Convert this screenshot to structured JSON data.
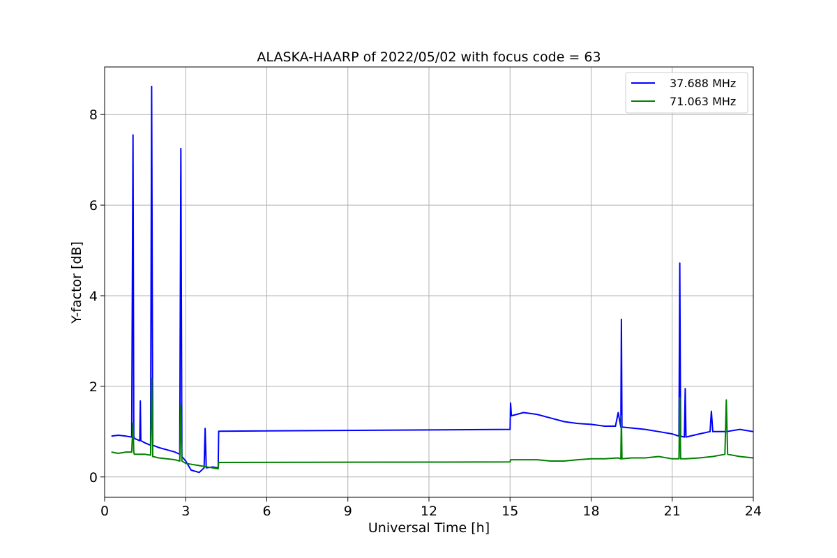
{
  "chart_data": {
    "type": "line",
    "title": "ALASKA-HAARP of 2022/05/02 with focus code = 63",
    "xlabel": "Universal Time [h]",
    "ylabel": "Y-factor [dB]",
    "xlim": [
      0,
      24
    ],
    "ylim": [
      -0.45,
      9.05
    ],
    "xticks": [
      0,
      3,
      6,
      9,
      12,
      15,
      18,
      21,
      24
    ],
    "xtick_labels": [
      "0",
      "3",
      "6",
      "9",
      "12",
      "15",
      "18",
      "21",
      "24"
    ],
    "yticks": [
      0,
      2,
      4,
      6,
      8
    ],
    "ytick_labels": [
      "0",
      "2",
      "4",
      "6",
      "8"
    ],
    "grid": true,
    "legend_position": "top-right",
    "series": [
      {
        "name": "37.688 MHz",
        "color": "#0000ff",
        "x": [
          0.25,
          0.5,
          0.8,
          1.0,
          1.05,
          1.08,
          1.1,
          1.3,
          1.32,
          1.34,
          1.5,
          1.7,
          1.74,
          1.78,
          2.0,
          2.3,
          2.6,
          2.78,
          2.82,
          2.86,
          3.0,
          3.2,
          3.5,
          3.68,
          3.72,
          3.76,
          4.0,
          4.2,
          4.22,
          15.0,
          15.02,
          15.05,
          15.5,
          16.0,
          16.5,
          17.0,
          17.5,
          18.0,
          18.5,
          18.9,
          19.0,
          19.1,
          19.12,
          19.14,
          19.5,
          20.0,
          20.5,
          21.0,
          21.25,
          21.28,
          21.31,
          21.45,
          21.48,
          21.51,
          22.0,
          22.4,
          22.45,
          22.5,
          23.0,
          23.5,
          24.0
        ],
        "y": [
          0.9,
          0.92,
          0.9,
          0.88,
          7.55,
          0.9,
          0.85,
          0.8,
          1.68,
          0.8,
          0.75,
          0.7,
          8.62,
          0.7,
          0.65,
          0.6,
          0.55,
          0.5,
          7.25,
          0.45,
          0.35,
          0.15,
          0.1,
          0.2,
          1.07,
          0.2,
          0.22,
          0.2,
          1.01,
          1.05,
          1.63,
          1.35,
          1.42,
          1.38,
          1.3,
          1.22,
          1.18,
          1.16,
          1.12,
          1.12,
          1.42,
          1.1,
          3.48,
          1.1,
          1.08,
          1.05,
          1.0,
          0.95,
          0.9,
          4.72,
          0.9,
          0.88,
          1.95,
          0.88,
          0.95,
          1.0,
          1.45,
          1.0,
          1.0,
          1.05,
          1.0
        ]
      },
      {
        "name": "71.063 MHz",
        "color": "#008000",
        "x": [
          0.25,
          0.5,
          0.8,
          1.0,
          1.05,
          1.08,
          1.1,
          1.5,
          1.7,
          1.74,
          1.78,
          2.0,
          2.3,
          2.6,
          2.78,
          2.82,
          2.86,
          3.0,
          3.5,
          4.0,
          4.2,
          4.22,
          15.0,
          15.02,
          15.5,
          16.0,
          16.5,
          17.0,
          17.5,
          18.0,
          18.5,
          19.0,
          19.1,
          19.12,
          19.14,
          19.5,
          20.0,
          20.5,
          21.0,
          21.25,
          21.28,
          21.31,
          21.5,
          22.0,
          22.5,
          22.95,
          23.0,
          23.05,
          23.5,
          24.0
        ],
        "y": [
          0.55,
          0.52,
          0.55,
          0.55,
          1.18,
          0.55,
          0.5,
          0.5,
          0.48,
          2.18,
          0.45,
          0.42,
          0.4,
          0.38,
          0.35,
          1.58,
          0.35,
          0.3,
          0.25,
          0.2,
          0.18,
          0.32,
          0.33,
          0.38,
          0.38,
          0.38,
          0.35,
          0.35,
          0.38,
          0.4,
          0.4,
          0.42,
          0.4,
          1.35,
          0.4,
          0.42,
          0.42,
          0.45,
          0.4,
          0.4,
          1.75,
          0.4,
          0.4,
          0.42,
          0.45,
          0.5,
          1.7,
          0.5,
          0.45,
          0.42
        ]
      }
    ]
  }
}
